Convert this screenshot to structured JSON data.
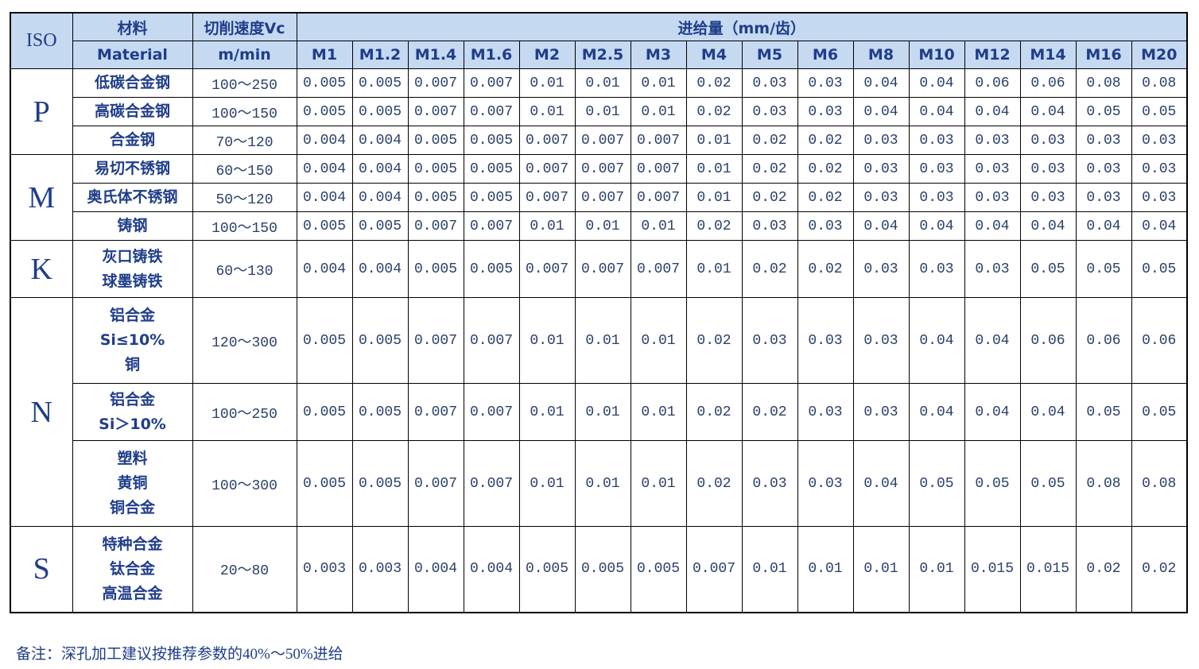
{
  "header": {
    "iso": "ISO",
    "material_cn": "材料",
    "material_en": "Material",
    "speed_cn": "切削速度Vc",
    "speed_en": "m/min",
    "feed": "进给量（mm/齿）",
    "sizes": [
      "M1",
      "M1.2",
      "M1.4",
      "M1.6",
      "M2",
      "M2.5",
      "M3",
      "M4",
      "M5",
      "M6",
      "M8",
      "M10",
      "M12",
      "M14",
      "M16",
      "M20"
    ]
  },
  "groups": [
    {
      "iso": "P",
      "rows": [
        {
          "material": [
            "低碳合金钢"
          ],
          "speed": "100～250",
          "feeds": [
            0.005,
            0.005,
            0.007,
            0.007,
            0.01,
            0.01,
            0.01,
            0.02,
            0.03,
            0.03,
            0.04,
            0.04,
            0.06,
            0.06,
            0.08,
            0.08
          ]
        },
        {
          "material": [
            "高碳合金钢"
          ],
          "speed": "100～150",
          "feeds": [
            0.005,
            0.005,
            0.007,
            0.007,
            0.01,
            0.01,
            0.01,
            0.02,
            0.03,
            0.03,
            0.04,
            0.04,
            0.04,
            0.04,
            0.05,
            0.05
          ]
        },
        {
          "material": [
            "合金钢"
          ],
          "speed": "70～120",
          "feeds": [
            0.004,
            0.004,
            0.005,
            0.005,
            0.007,
            0.007,
            0.007,
            0.01,
            0.02,
            0.02,
            0.03,
            0.03,
            0.03,
            0.03,
            0.03,
            0.03
          ]
        }
      ]
    },
    {
      "iso": "M",
      "rows": [
        {
          "material": [
            "易切不锈钢"
          ],
          "speed": "60～150",
          "feeds": [
            0.004,
            0.004,
            0.005,
            0.005,
            0.007,
            0.007,
            0.007,
            0.01,
            0.02,
            0.02,
            0.03,
            0.03,
            0.03,
            0.03,
            0.03,
            0.03
          ]
        },
        {
          "material": [
            "奥氏体不锈钢"
          ],
          "speed": "50～120",
          "feeds": [
            0.004,
            0.004,
            0.005,
            0.005,
            0.007,
            0.007,
            0.007,
            0.01,
            0.02,
            0.02,
            0.03,
            0.03,
            0.03,
            0.03,
            0.03,
            0.03
          ]
        },
        {
          "material": [
            "铸钢"
          ],
          "speed": "100～150",
          "feeds": [
            0.005,
            0.005,
            0.007,
            0.007,
            0.01,
            0.01,
            0.01,
            0.02,
            0.03,
            0.03,
            0.04,
            0.04,
            0.04,
            0.04,
            0.04,
            0.04
          ]
        }
      ]
    },
    {
      "iso": "K",
      "rows": [
        {
          "material": [
            "灰口铸铁",
            "球墨铸铁"
          ],
          "speed": "60～130",
          "feeds": [
            0.004,
            0.004,
            0.005,
            0.005,
            0.007,
            0.007,
            0.007,
            0.01,
            0.02,
            0.02,
            0.03,
            0.03,
            0.03,
            0.05,
            0.05,
            0.05
          ]
        }
      ]
    },
    {
      "iso": "N",
      "rows": [
        {
          "material": [
            "铝合金",
            "Si≤10%",
            "铜"
          ],
          "speed": "120～300",
          "feeds": [
            0.005,
            0.005,
            0.007,
            0.007,
            0.01,
            0.01,
            0.01,
            0.02,
            0.03,
            0.03,
            0.03,
            0.04,
            0.04,
            0.06,
            0.06,
            0.06
          ]
        },
        {
          "material": [
            "铝合金",
            "Si＞10%"
          ],
          "speed": "100～250",
          "feeds": [
            0.005,
            0.005,
            0.007,
            0.007,
            0.01,
            0.01,
            0.01,
            0.02,
            0.02,
            0.03,
            0.03,
            0.04,
            0.04,
            0.04,
            0.05,
            0.05
          ]
        },
        {
          "material": [
            "塑料",
            "黄铜",
            "铜合金"
          ],
          "speed": "100～300",
          "feeds": [
            0.005,
            0.005,
            0.007,
            0.007,
            0.01,
            0.01,
            0.01,
            0.02,
            0.03,
            0.03,
            0.04,
            0.05,
            0.05,
            0.05,
            0.08,
            0.08
          ]
        }
      ]
    },
    {
      "iso": "S",
      "rows": [
        {
          "material": [
            "特种合金",
            "钛合金",
            "高温合金"
          ],
          "speed": "20～80",
          "feeds": [
            0.003,
            0.003,
            0.004,
            0.004,
            0.005,
            0.005,
            0.005,
            0.007,
            0.01,
            0.01,
            0.01,
            0.01,
            0.015,
            0.015,
            0.02,
            0.02
          ]
        }
      ]
    }
  ],
  "note": "备注：深孔加工建议按推荐参数的40%～50%进给"
}
